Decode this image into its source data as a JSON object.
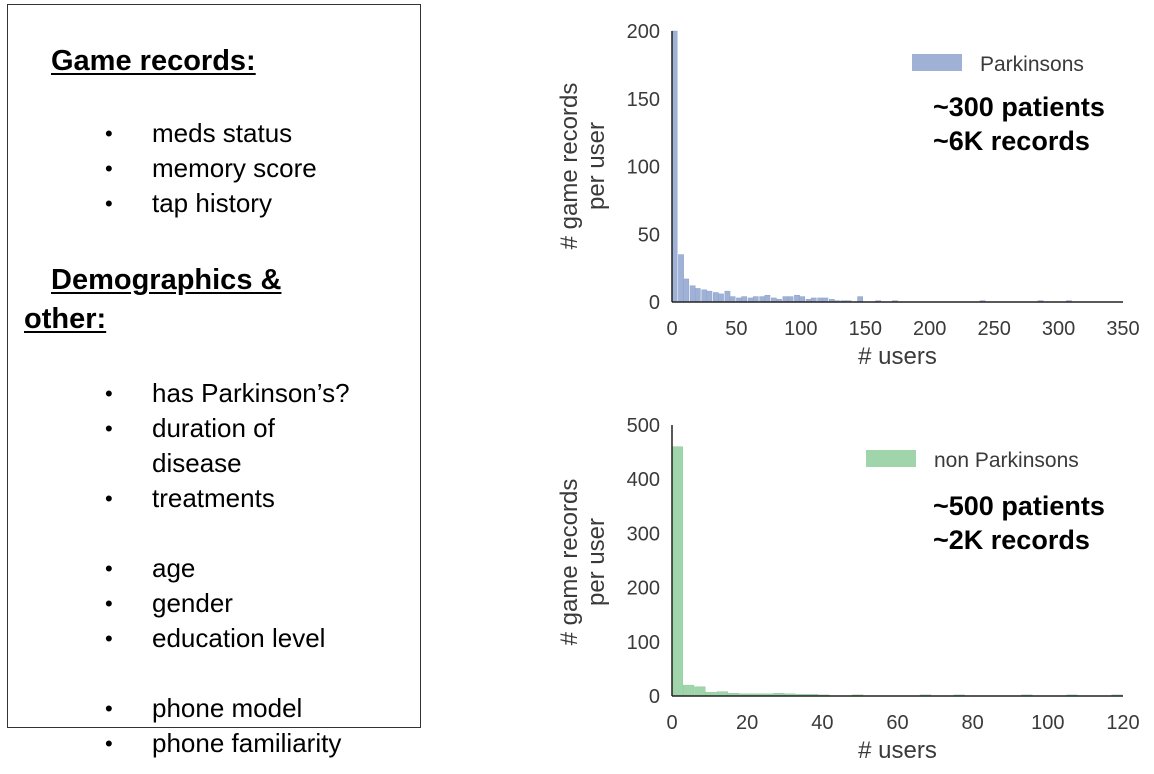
{
  "panel": {
    "game_records_heading": "Game records:",
    "game_records_items": [
      "meds status",
      "memory score",
      "tap history"
    ],
    "demographics_heading_line1": "Demographics &",
    "demographics_heading_line2": "other:",
    "demographics_items": [
      [
        "has Parkinson’s?"
      ],
      [
        "duration of",
        "disease"
      ],
      [
        "treatments"
      ],
      [],
      [
        "age"
      ],
      [
        "gender"
      ],
      [
        "education level"
      ],
      [],
      [
        "phone model"
      ],
      [
        "phone familiarity"
      ]
    ],
    "bullet_char": "•"
  },
  "chart_data": [
    {
      "type": "bar",
      "xlabel": "# users",
      "ylabel_lines": [
        "# game records",
        "per user"
      ],
      "xlim": [
        0,
        350
      ],
      "ylim": [
        0,
        200
      ],
      "xticks": [
        0,
        50,
        100,
        150,
        200,
        250,
        300,
        350
      ],
      "yticks": [
        0,
        50,
        100,
        150,
        200
      ],
      "bin_width": 4.5,
      "series": [
        {
          "name": "Parkinsons",
          "color": "#8fa3cf",
          "bins": [
            [
              0,
              200
            ],
            [
              5,
              35
            ],
            [
              9,
              17
            ],
            [
              14,
              12
            ],
            [
              18,
              10
            ],
            [
              23,
              9
            ],
            [
              27,
              8
            ],
            [
              32,
              7
            ],
            [
              36,
              6
            ],
            [
              41,
              8
            ],
            [
              45,
              4
            ],
            [
              50,
              3
            ],
            [
              54,
              4
            ],
            [
              59,
              3
            ],
            [
              63,
              4
            ],
            [
              68,
              4
            ],
            [
              72,
              5
            ],
            [
              77,
              3
            ],
            [
              81,
              2
            ],
            [
              86,
              4
            ],
            [
              90,
              4
            ],
            [
              95,
              5
            ],
            [
              99,
              4
            ],
            [
              104,
              2
            ],
            [
              108,
              3
            ],
            [
              113,
              3
            ],
            [
              117,
              3
            ],
            [
              122,
              2
            ],
            [
              126,
              1
            ],
            [
              131,
              1
            ],
            [
              135,
              1
            ],
            [
              144,
              4
            ],
            [
              158,
              1
            ],
            [
              171,
              1
            ],
            [
              239,
              1
            ],
            [
              284,
              1
            ],
            [
              306,
              1
            ]
          ]
        }
      ],
      "annotations": [
        "~300 patients",
        "~6K records"
      ],
      "legend_position": "top-right",
      "grid": false
    },
    {
      "type": "bar",
      "xlabel": "# users",
      "ylabel_lines": [
        "# game records",
        "per user"
      ],
      "xlim": [
        0,
        120
      ],
      "ylim": [
        0,
        500
      ],
      "xticks": [
        0,
        20,
        40,
        60,
        80,
        100,
        120
      ],
      "yticks": [
        0,
        100,
        200,
        300,
        400,
        500
      ],
      "bin_width": 3,
      "series": [
        {
          "name": "non Parkinsons",
          "color": "#8fcc9c",
          "bins": [
            [
              0,
              460
            ],
            [
              3,
              20
            ],
            [
              6,
              17
            ],
            [
              9,
              7
            ],
            [
              12,
              8
            ],
            [
              15,
              5
            ],
            [
              18,
              4
            ],
            [
              21,
              4
            ],
            [
              24,
              4
            ],
            [
              27,
              5
            ],
            [
              30,
              4
            ],
            [
              33,
              3
            ],
            [
              36,
              3
            ],
            [
              39,
              2
            ],
            [
              48,
              2
            ],
            [
              66,
              2
            ],
            [
              75,
              2
            ],
            [
              93,
              2
            ],
            [
              105,
              2
            ],
            [
              117,
              2
            ]
          ]
        }
      ],
      "annotations": [
        "~500 patients",
        "~2K records"
      ],
      "legend_position": "top-right",
      "grid": false
    }
  ]
}
